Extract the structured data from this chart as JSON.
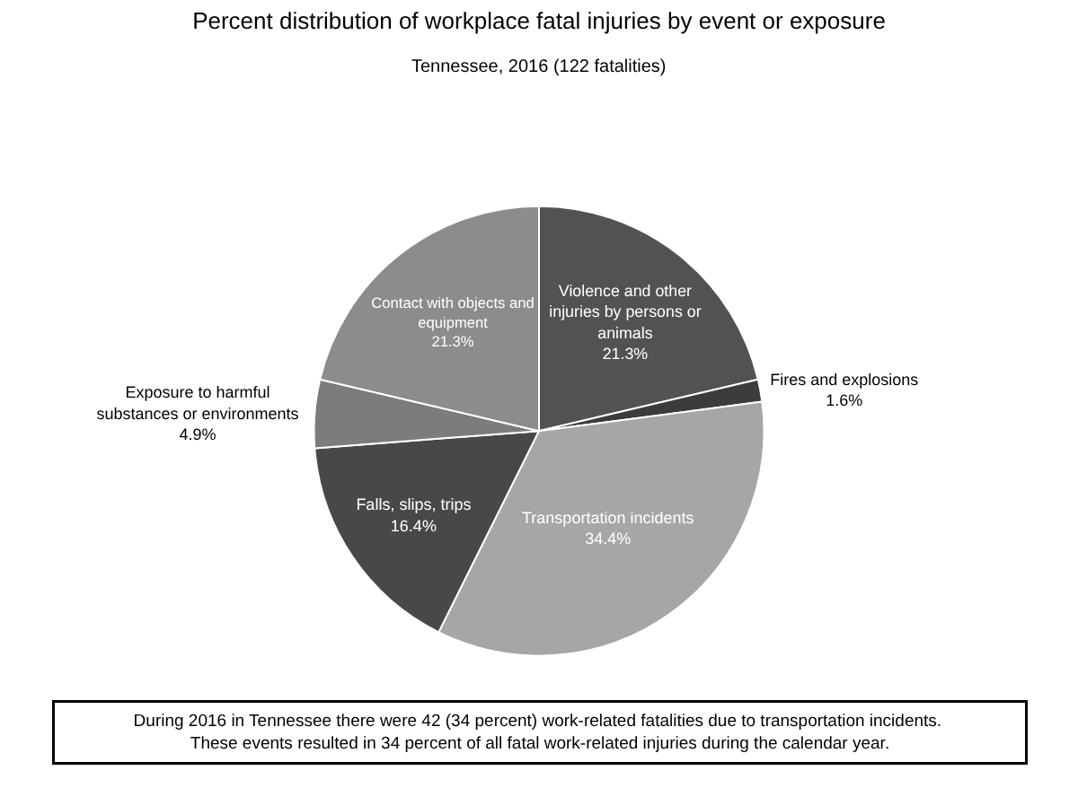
{
  "chart_data": {
    "type": "pie",
    "title": "Percent distribution of workplace fatal injuries by event or exposure",
    "subtitle": "Tennessee, 2016 (122 fatalities)",
    "categories": [
      "Violence and other injuries by persons or animals",
      "Fires and explosions",
      "Transportation incidents",
      "Falls, slips, trips",
      "Exposure to harmful substances or environments",
      "Contact with objects and equipment"
    ],
    "values": [
      21.3,
      1.6,
      34.4,
      16.4,
      4.9,
      21.3
    ],
    "value_labels": [
      "21.3%",
      "1.6%",
      "34.4%",
      "16.4%",
      "4.9%",
      "21.3%"
    ],
    "colors": [
      "#525252",
      "#3c3c3c",
      "#a6a6a6",
      "#484848",
      "#7c7c7c",
      "#8c8c8c"
    ],
    "legend": false,
    "annotations": [
      "During 2016 in Tennessee there were 42 (34 percent) work-related fatalities due to transportation incidents.  These events resulted in 34 percent of all fatal work-related injuries during the calendar year."
    ]
  }
}
